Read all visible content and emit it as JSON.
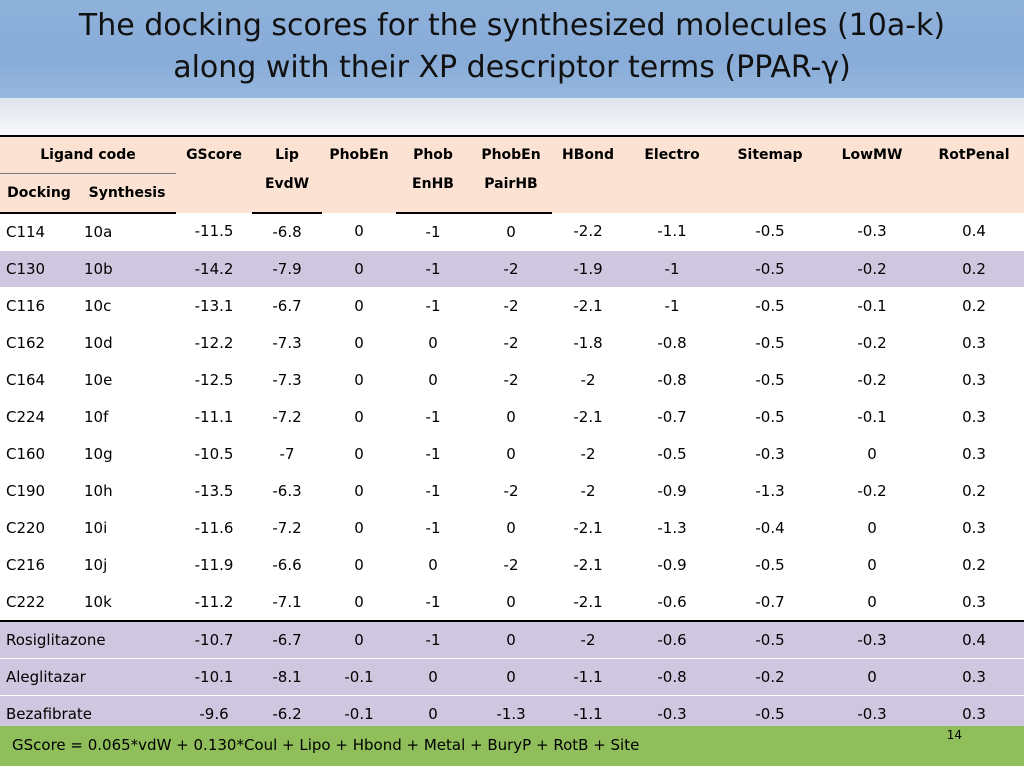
{
  "slide": {
    "title_line1": "The docking scores for the synthesized molecules (10a-k)",
    "title_line2": "along with their XP descriptor terms (PPAR-γ)",
    "footer_formula": "GScore = 0.065*vdW + 0.130*Coul + Lipo + Hbond + Metal + BuryP + RotB + Site",
    "page_number": "14"
  },
  "table": {
    "header": {
      "ligand_code": "Ligand code",
      "docking": "Docking",
      "synthesis": "Synthesis",
      "gscore": "GScore",
      "lip_evdw_1": "Lip",
      "lip_evdw_2": "EvdW",
      "phoben": "PhobEn",
      "phob_enhb_1": "Phob",
      "phob_enhb_2": "EnHB",
      "phoben_pairhb_1": "PhobEn",
      "phoben_pairhb_2": "PairHB",
      "hbond": "HBond",
      "electro": "Electro",
      "sitemap": "Sitemap",
      "lowmw": "LowMW",
      "rotpenal": "RotPenal"
    },
    "rows": [
      {
        "docking": "C114",
        "synthesis": "10a",
        "gscore": "-11.5",
        "lip": "-6.8",
        "phoben": "0",
        "phobenhb": "-1",
        "pairhb": "0",
        "hbond": "-2.2",
        "electro": "-1.1",
        "sitemap": "-0.5",
        "lowmw": "-0.3",
        "rotpenal": "0.4"
      },
      {
        "docking": "C130",
        "synthesis": "10b",
        "gscore": "-14.2",
        "lip": "-7.9",
        "phoben": "0",
        "phobenhb": "-1",
        "pairhb": "-2",
        "hbond": "-1.9",
        "electro": "-1",
        "sitemap": "-0.5",
        "lowmw": "-0.2",
        "rotpenal": "0.2"
      },
      {
        "docking": "C116",
        "synthesis": "10c",
        "gscore": "-13.1",
        "lip": "-6.7",
        "phoben": "0",
        "phobenhb": "-1",
        "pairhb": "-2",
        "hbond": "-2.1",
        "electro": "-1",
        "sitemap": "-0.5",
        "lowmw": "-0.1",
        "rotpenal": "0.2"
      },
      {
        "docking": "C162",
        "synthesis": "10d",
        "gscore": "-12.2",
        "lip": "-7.3",
        "phoben": "0",
        "phobenhb": "0",
        "pairhb": "-2",
        "hbond": "-1.8",
        "electro": "-0.8",
        "sitemap": "-0.5",
        "lowmw": "-0.2",
        "rotpenal": "0.3"
      },
      {
        "docking": "C164",
        "synthesis": "10e",
        "gscore": "-12.5",
        "lip": "-7.3",
        "phoben": "0",
        "phobenhb": "0",
        "pairhb": "-2",
        "hbond": "-2",
        "electro": "-0.8",
        "sitemap": "-0.5",
        "lowmw": "-0.2",
        "rotpenal": "0.3"
      },
      {
        "docking": "C224",
        "synthesis": "10f",
        "gscore": "-11.1",
        "lip": "-7.2",
        "phoben": "0",
        "phobenhb": "-1",
        "pairhb": "0",
        "hbond": "-2.1",
        "electro": "-0.7",
        "sitemap": "-0.5",
        "lowmw": "-0.1",
        "rotpenal": "0.3"
      },
      {
        "docking": "C160",
        "synthesis": "10g",
        "gscore": "-10.5",
        "lip": "-7",
        "phoben": "0",
        "phobenhb": "-1",
        "pairhb": "0",
        "hbond": "-2",
        "electro": "-0.5",
        "sitemap": "-0.3",
        "lowmw": "0",
        "rotpenal": "0.3"
      },
      {
        "docking": "C190",
        "synthesis": "10h",
        "gscore": "-13.5",
        "lip": "-6.3",
        "phoben": "0",
        "phobenhb": "-1",
        "pairhb": "-2",
        "hbond": "-2",
        "electro": "-0.9",
        "sitemap": "-1.3",
        "lowmw": "-0.2",
        "rotpenal": "0.2"
      },
      {
        "docking": "C220",
        "synthesis": "10i",
        "gscore": "-11.6",
        "lip": "-7.2",
        "phoben": "0",
        "phobenhb": "-1",
        "pairhb": "0",
        "hbond": "-2.1",
        "electro": "-1.3",
        "sitemap": "-0.4",
        "lowmw": "0",
        "rotpenal": "0.3"
      },
      {
        "docking": "C216",
        "synthesis": "10j",
        "gscore": "-11.9",
        "lip": "-6.6",
        "phoben": "0",
        "phobenhb": "0",
        "pairhb": "-2",
        "hbond": "-2.1",
        "electro": "-0.9",
        "sitemap": "-0.5",
        "lowmw": "0",
        "rotpenal": "0.2"
      },
      {
        "docking": "C222",
        "synthesis": "10k",
        "gscore": "-11.2",
        "lip": "-7.1",
        "phoben": "0",
        "phobenhb": "-1",
        "pairhb": "0",
        "hbond": "-2.1",
        "electro": "-0.6",
        "sitemap": "-0.7",
        "lowmw": "0",
        "rotpenal": "0.3"
      }
    ],
    "reference_rows": [
      {
        "ligand": "Rosiglitazone",
        "gscore": "-10.7",
        "lip": "-6.7",
        "phoben": "0",
        "phobenhb": "-1",
        "pairhb": "0",
        "hbond": "-2",
        "electro": "-0.6",
        "sitemap": "-0.5",
        "lowmw": "-0.3",
        "rotpenal": "0.4"
      },
      {
        "ligand": "Aleglitazar",
        "gscore": "-10.1",
        "lip": "-8.1",
        "phoben": "-0.1",
        "phobenhb": "0",
        "pairhb": "0",
        "hbond": "-1.1",
        "electro": "-0.8",
        "sitemap": "-0.2",
        "lowmw": "0",
        "rotpenal": "0.3"
      },
      {
        "ligand": "Bezafibrate",
        "gscore": "-9.6",
        "lip": "-6.2",
        "phoben": "-0.1",
        "phobenhb": "0",
        "pairhb": "-1.3",
        "hbond": "-1.1",
        "electro": "-0.3",
        "sitemap": "-0.5",
        "lowmw": "-0.3",
        "rotpenal": "0.3"
      }
    ]
  },
  "colors": {
    "title_bar": "#8fb2db",
    "header_fill": "#fbe2d2",
    "row_alt": "#cfc6df",
    "footer_bar": "#8fbe5a"
  }
}
